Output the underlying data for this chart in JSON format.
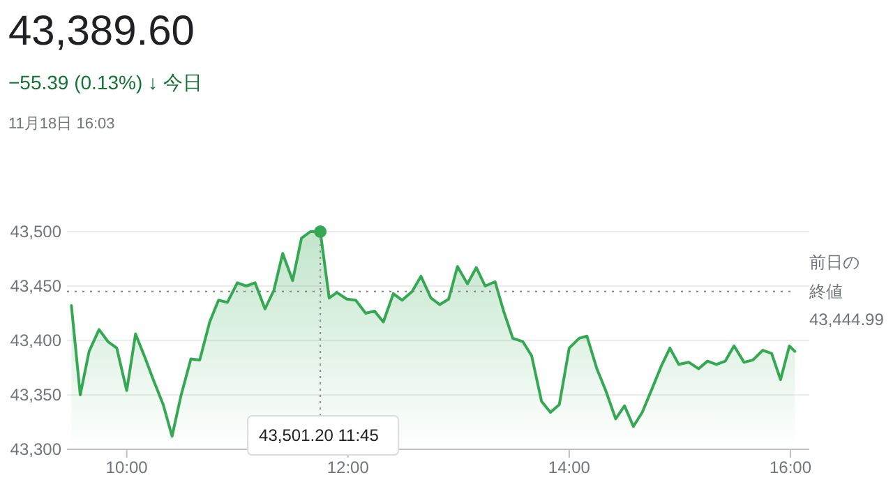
{
  "chart_data": {
    "type": "area",
    "title": "43,389.60",
    "subtitle": "−55.39 (0.13%) ↓ 今日",
    "annotations": [
      "11月18日 16:03",
      {
        "text": "43,501.20 11:45",
        "x": 11.75,
        "y": 43500
      },
      "43,444.99"
    ],
    "x": [
      9.5,
      9.58,
      9.66,
      9.75,
      9.83,
      9.91,
      10.0,
      10.08,
      10.17,
      10.24,
      10.33,
      10.41,
      10.49,
      10.58,
      10.66,
      10.75,
      10.83,
      10.91,
      11.0,
      11.08,
      11.16,
      11.25,
      11.33,
      11.41,
      11.5,
      11.58,
      11.66,
      11.75,
      11.83,
      11.9,
      11.99,
      12.07,
      12.16,
      12.24,
      12.32,
      12.41,
      12.49,
      12.58,
      12.66,
      12.75,
      12.83,
      12.91,
      12.99,
      13.08,
      13.16,
      13.24,
      13.33,
      13.41,
      13.49,
      13.58,
      13.66,
      13.75,
      13.83,
      13.91,
      14.0,
      14.09,
      14.16,
      14.25,
      14.33,
      14.42,
      14.5,
      14.58,
      14.66,
      14.75,
      14.83,
      14.91,
      14.99,
      15.08,
      15.17,
      15.25,
      15.33,
      15.41,
      15.49,
      15.58,
      15.66,
      15.75,
      15.83,
      15.91,
      15.99,
      16.04
    ],
    "series": [
      {
        "color": "#34a853",
        "values": [
          43432,
          43350,
          43390,
          43410,
          43399,
          43393,
          43354,
          43406,
          43383,
          43364,
          43341,
          43312,
          43349,
          43383,
          43382,
          43417,
          43437,
          43435,
          43453,
          43450,
          43453,
          43429,
          43446,
          43480,
          43455,
          43494,
          43500,
          43500,
          43439,
          43444,
          43438,
          43437,
          43425,
          43427,
          43417,
          43443,
          43437,
          43445,
          43459,
          43439,
          43433,
          43438,
          43468,
          43452,
          43467,
          43450,
          43454,
          43426,
          43402,
          43399,
          43386,
          43344,
          43334,
          43341,
          43393,
          43402,
          43404,
          43374,
          43354,
          43328,
          43340,
          43321,
          43334,
          43356,
          43376,
          43393,
          43378,
          43380,
          43374,
          43381,
          43378,
          43381,
          43395,
          43380,
          43382,
          43391,
          43388,
          43364,
          43395,
          43390
        ]
      }
    ],
    "xlim": [
      9.46,
      16.17
    ],
    "ylim": [
      43300,
      43500
    ],
    "xticks": [
      {
        "value": 10,
        "label": "10:00"
      },
      {
        "value": 12,
        "label": "12:00"
      },
      {
        "value": 14,
        "label": "14:00"
      },
      {
        "value": 16,
        "label": "16:00"
      }
    ],
    "yticks": [
      {
        "value": 43300,
        "label": "43,300"
      },
      {
        "value": 43350,
        "label": "43,350"
      },
      {
        "value": 43400,
        "label": "43,400"
      },
      {
        "value": 43450,
        "label": "43,450"
      },
      {
        "value": 43500,
        "label": "43,500"
      }
    ],
    "ref_lines": [
      {
        "axis": "y",
        "value": 43444.99,
        "label": "前日の終値",
        "color": "#7f7f7f",
        "line_style": "dotted"
      }
    ],
    "grid": "y",
    "marker": "none",
    "line_style": "solid"
  }
}
